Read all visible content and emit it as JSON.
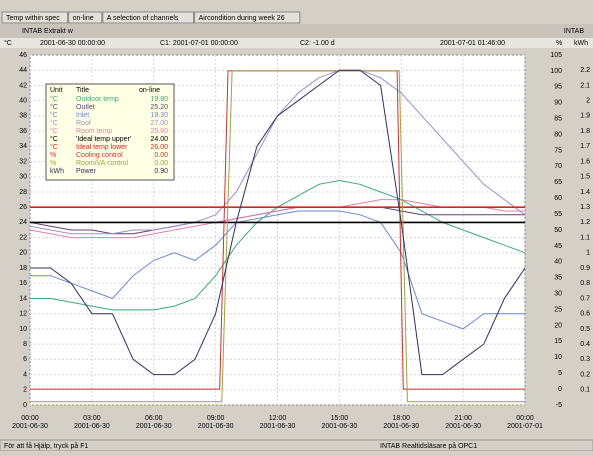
{
  "tabs": [
    "Temp within spec",
    "on-line",
    "A selection of channels",
    "Aircondition during week 26"
  ],
  "window": {
    "title": "INTAB Extrakt w",
    "brand": "INTAB"
  },
  "cursor_bar": {
    "unit": "°C",
    "start": "2001-06-30 00:00:00",
    "c1": "C1: 2001-07-01 00:00:00",
    "c2": "C2: -1.00 d",
    "end": "2001-07-01 01:46:00",
    "unit2": "%",
    "unit3": "kWh"
  },
  "status": {
    "help": "För att få Hjälp, tryck på F1",
    "reader": "INTAB Realtidsläsare på OPC1"
  },
  "legend": {
    "header": [
      "Unit",
      "Title",
      "on-line"
    ],
    "rows": [
      [
        "°C",
        "Outdoor temp",
        "19.80"
      ],
      [
        "°C",
        "Outlet",
        "25.20"
      ],
      [
        "°C",
        "Inlet",
        "19.30"
      ],
      [
        "°C",
        "Roof",
        "27.00"
      ],
      [
        "°C",
        "Room temp",
        "25.80"
      ],
      [
        "°C",
        "'Ideal temp upper'",
        "24.00"
      ],
      [
        "°C",
        "Ideal temp lower",
        "26.00"
      ],
      [
        "%",
        "Cooling control",
        "0.00"
      ],
      [
        "%",
        "Room/VA control",
        "0.00"
      ],
      [
        "kWh",
        "Power",
        "0.90"
      ]
    ]
  },
  "chart": {
    "type": "line",
    "xlim": [
      0,
      24
    ],
    "xticks": [
      {
        "value": 0,
        "label": "00:00",
        "date": "2001-06-30"
      },
      {
        "value": 3,
        "label": "03:00",
        "date": "2001-06-30"
      },
      {
        "value": 6,
        "label": "06:00",
        "date": "2001-06-30"
      },
      {
        "value": 9,
        "label": "09:00",
        "date": "2001-06-30"
      },
      {
        "value": 12,
        "label": "12:00",
        "date": "2001-06-30"
      },
      {
        "value": 15,
        "label": "15:00",
        "date": "2001-06-30"
      },
      {
        "value": 18,
        "label": "18:00",
        "date": "2001-06-30"
      },
      {
        "value": 21,
        "label": "21:00",
        "date": "2001-06-30"
      },
      {
        "value": 24,
        "label": "00:00",
        "date": "2001-07-01"
      }
    ],
    "ylim": [
      0,
      46
    ],
    "yticks": [
      0,
      2,
      4,
      6,
      8,
      10,
      12,
      14,
      16,
      18,
      20,
      22,
      24,
      26,
      28,
      30,
      32,
      34,
      36,
      38,
      40,
      42,
      44,
      46
    ],
    "y2lim": [
      -5,
      105
    ],
    "y2ticks": [
      -5,
      0,
      5,
      10,
      15,
      20,
      25,
      30,
      35,
      40,
      45,
      50,
      55,
      60,
      65,
      70,
      75,
      80,
      85,
      90,
      95,
      100,
      105
    ],
    "y3lim": [
      0,
      2.3
    ],
    "y3ticks": [
      0.1,
      0.2,
      0.3,
      0.4,
      0.5,
      0.6,
      0.7,
      0.8,
      0.9,
      1,
      1.1,
      1.2,
      1.3,
      1.4,
      1.5,
      1.6,
      1.7,
      1.8,
      1.9,
      2,
      2.1,
      2.2
    ],
    "grid": true,
    "series": [
      {
        "name": "Outdoor temp",
        "color": "#3aa878",
        "axis": "y",
        "x": [
          0,
          1,
          2,
          3,
          4,
          5,
          6,
          7,
          8,
          9,
          10,
          11,
          12,
          13,
          14,
          15,
          16,
          17,
          18,
          19,
          20,
          21,
          22,
          23,
          24
        ],
        "values": [
          14,
          14,
          13.5,
          13,
          12.5,
          12.5,
          12.5,
          13,
          14,
          17,
          21,
          24,
          26,
          27.5,
          29,
          29.5,
          29,
          28,
          27,
          25.5,
          24,
          23,
          22,
          21,
          20
        ]
      },
      {
        "name": "Outlet",
        "color": "#604070",
        "axis": "y",
        "x": [
          0,
          1,
          2,
          3,
          4,
          5,
          6,
          7,
          8,
          9,
          10,
          11,
          12,
          13,
          14,
          15,
          16,
          17,
          18,
          19,
          20,
          21,
          22,
          23,
          24
        ],
        "values": [
          24,
          23.5,
          23,
          23,
          22.5,
          22.5,
          23,
          23.5,
          24,
          24,
          24.5,
          25,
          25.5,
          26,
          26,
          26,
          26,
          26,
          25.5,
          25,
          25,
          25,
          25,
          25,
          25
        ]
      },
      {
        "name": "Inlet",
        "color": "#6a8ad0",
        "axis": "y",
        "x": [
          0,
          1,
          2,
          3,
          4,
          5,
          6,
          7,
          8,
          9,
          10,
          11,
          12,
          13,
          14,
          15,
          16,
          17,
          18,
          19,
          20,
          21,
          22,
          23,
          24
        ],
        "values": [
          17,
          17,
          16,
          15,
          14,
          17,
          19,
          20,
          19,
          21,
          24,
          24.5,
          25,
          25.5,
          25.5,
          25.5,
          25,
          24,
          20,
          12,
          11,
          10,
          12,
          12,
          12
        ]
      },
      {
        "name": "Roof",
        "color": "#9a90c8",
        "axis": "y",
        "x": [
          0,
          1,
          2,
          3,
          4,
          5,
          6,
          7,
          8,
          9,
          10,
          11,
          12,
          13,
          14,
          15,
          16,
          17,
          18,
          19,
          20,
          21,
          22,
          23,
          24
        ],
        "values": [
          23.5,
          23,
          22.5,
          22.5,
          22.5,
          23,
          23,
          23.5,
          24,
          25,
          28,
          33,
          38,
          41,
          43,
          44,
          44,
          43,
          41,
          38,
          35,
          32,
          29,
          27,
          25
        ]
      },
      {
        "name": "Room temp",
        "color": "#e080b0",
        "axis": "y",
        "x": [
          0,
          1,
          2,
          3,
          4,
          5,
          6,
          7,
          8,
          9,
          10,
          11,
          12,
          13,
          14,
          15,
          16,
          17,
          18,
          19,
          20,
          21,
          22,
          23,
          24
        ],
        "values": [
          23,
          22.5,
          22,
          22,
          22,
          22,
          22.5,
          23,
          23.5,
          24,
          24.5,
          25,
          25.5,
          26,
          26,
          26,
          26.5,
          27,
          27,
          26.5,
          26,
          26,
          26,
          25.5,
          25.5
        ]
      },
      {
        "name": "'Ideal temp upper'",
        "color": "#000000",
        "axis": "y",
        "x": [
          0,
          24
        ],
        "values": [
          24,
          24
        ]
      },
      {
        "name": "Ideal temp lower",
        "color": "#e02020",
        "axis": "y",
        "x": [
          0,
          24
        ],
        "values": [
          26,
          26
        ]
      },
      {
        "name": "Cooling control",
        "color": "#d03030",
        "axis": "y2",
        "x": [
          0,
          9.2,
          9.6,
          17.8,
          18.1,
          24
        ],
        "values": [
          0,
          0,
          100,
          100,
          0,
          0
        ]
      },
      {
        "name": "Room/VA control",
        "color": "#a0a040",
        "axis": "y2",
        "x": [
          0,
          9.3,
          9.8,
          17.9,
          18.3,
          24
        ],
        "values": [
          -4,
          -4,
          100,
          100,
          -4,
          -4
        ]
      },
      {
        "name": "Power",
        "color": "#303060",
        "axis": "y3",
        "x": [
          0,
          1,
          2,
          3,
          4,
          5,
          6,
          7,
          8,
          9,
          10,
          11,
          12,
          13,
          14,
          15,
          16,
          17,
          18,
          19,
          20,
          21,
          22,
          23,
          24
        ],
        "values": [
          0.9,
          0.9,
          0.8,
          0.6,
          0.6,
          0.3,
          0.2,
          0.2,
          0.3,
          0.6,
          1.2,
          1.7,
          1.9,
          2,
          2.1,
          2.2,
          2.2,
          2.1,
          1.2,
          0.2,
          0.2,
          0.3,
          0.4,
          0.7,
          0.9
        ]
      }
    ]
  }
}
